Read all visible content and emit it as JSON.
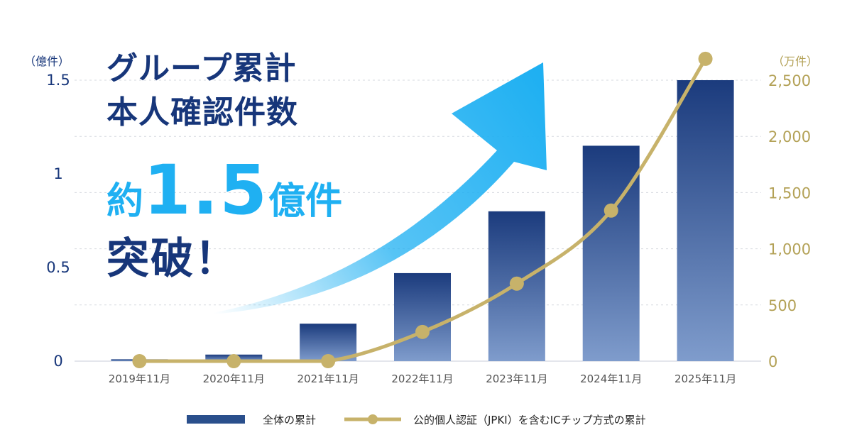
{
  "headline": {
    "line1": "グループ累計",
    "line2": "本人確認件数",
    "prefix": "約",
    "number": "1.5",
    "unit": "億件",
    "line4": "突破！"
  },
  "colors": {
    "bar_top": "#1b3b7d",
    "bar_bottom": "#7f9ccc",
    "line": "#c7b26a",
    "left_axis": "#17367a",
    "right_axis": "#b3a156",
    "arrow": "#1fb0f2"
  },
  "chart_data": {
    "type": "bar",
    "categories": [
      "2019年11月",
      "2020年11月",
      "2021年11月",
      "2022年11月",
      "2023年11月",
      "2024年11月",
      "2025年11月"
    ],
    "series": [
      {
        "name": "全体の累計",
        "type": "bar",
        "axis": "left",
        "values": [
          0.01,
          0.035,
          0.2,
          0.47,
          0.8,
          1.15,
          1.5
        ]
      },
      {
        "name": "公的個人認証（JPKI）を含むICチップ方式の累計",
        "type": "line",
        "axis": "right",
        "values": [
          0,
          0,
          0,
          260,
          690,
          1340,
          2690
        ]
      }
    ],
    "left_axis": {
      "unit_label": "（億件）",
      "ticks": [
        "0",
        "0.5",
        "1",
        "1.5"
      ],
      "ylim": [
        0,
        1.5
      ]
    },
    "right_axis": {
      "unit_label": "（万件）",
      "ticks": [
        "0",
        "500",
        "1,000",
        "1,500",
        "2,000",
        "2,500"
      ],
      "ylim": [
        0,
        2500
      ]
    },
    "grid": "dashed-horizontal",
    "legend_position": "bottom-center"
  }
}
